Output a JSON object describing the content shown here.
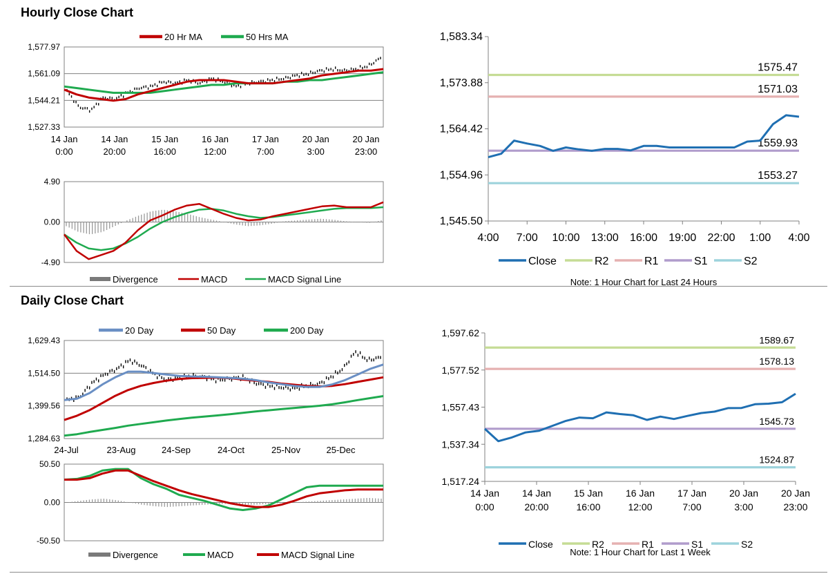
{
  "sections": {
    "hourly_title": "Hourly Close Chart",
    "daily_title": "Daily Close Chart"
  },
  "colors": {
    "ma20hr": "#c00000",
    "ma50hr": "#1faa4f",
    "close": "#1f6fb2",
    "r2": "#c5dc95",
    "r1": "#e5b1b1",
    "s1": "#b09ccc",
    "s2": "#9dd3dc",
    "divergence": "#7a7a7a",
    "day20": "#6a8fc4",
    "day50": "#c00000",
    "day200": "#1faa4f"
  },
  "chart_data": [
    {
      "id": "hourly_price",
      "type": "line",
      "legend": [
        "20 Hr MA",
        "50 Hrs MA"
      ],
      "yticks": [
        "1,577.97",
        "1,561.09",
        "1,544.21",
        "1,527.33"
      ],
      "ylim": [
        1527.33,
        1577.97
      ],
      "xticks": [
        [
          "14 Jan",
          "0:00"
        ],
        [
          "14 Jan",
          "20:00"
        ],
        [
          "15 Jan",
          "16:00"
        ],
        [
          "16 Jan",
          "12:00"
        ],
        [
          "17 Jan",
          "7:00"
        ],
        [
          "20 Jan",
          "3:00"
        ],
        [
          "20 Jan",
          "23:00"
        ]
      ],
      "series": [
        {
          "name": "Close",
          "values": [
            1550,
            1540,
            1538,
            1546,
            1545,
            1549,
            1552,
            1553,
            1556,
            1555,
            1557,
            1555,
            1558,
            1556,
            1553,
            1555,
            1556,
            1557,
            1558,
            1560,
            1561,
            1563,
            1564,
            1563,
            1564,
            1566,
            1571
          ]
        },
        {
          "name": "20 Hr MA",
          "values": [
            1551,
            1548,
            1546,
            1545,
            1544,
            1545,
            1548,
            1550,
            1552,
            1554,
            1556,
            1557,
            1557,
            1557,
            1556,
            1555,
            1555,
            1555,
            1556,
            1557,
            1558,
            1560,
            1561,
            1562,
            1563,
            1563,
            1564
          ]
        },
        {
          "name": "50 Hrs MA",
          "values": [
            1553,
            1552,
            1551,
            1550,
            1549,
            1549,
            1549,
            1549,
            1550,
            1551,
            1552,
            1553,
            1554,
            1554,
            1555,
            1555,
            1555,
            1555,
            1556,
            1556,
            1557,
            1557,
            1558,
            1559,
            1560,
            1561,
            1562
          ]
        }
      ]
    },
    {
      "id": "hourly_macd",
      "type": "line",
      "legend": [
        "Divergence",
        "MACD",
        "MACD Signal Line"
      ],
      "yticks": [
        "4.90",
        "0.00",
        "-4.90"
      ],
      "ylim": [
        -4.9,
        4.9
      ],
      "series": [
        {
          "name": "Divergence",
          "values": [
            -0.5,
            -1.2,
            -1.5,
            -1.2,
            -0.5,
            0.2,
            0.8,
            1.3,
            1.5,
            1.3,
            1.0,
            0.6,
            0.3,
            0.0,
            -0.3,
            -0.5,
            -0.4,
            -0.2,
            0.1,
            0.2,
            0.3,
            0.4,
            0.3,
            0.1,
            0.0,
            -0.1,
            0.2
          ]
        },
        {
          "name": "MACD",
          "values": [
            -1.5,
            -3.5,
            -4.5,
            -4.0,
            -3.5,
            -2.5,
            -1.0,
            0.2,
            0.8,
            1.5,
            2.0,
            2.2,
            1.6,
            1.0,
            0.5,
            0.2,
            0.3,
            0.7,
            1.0,
            1.3,
            1.6,
            1.9,
            2.0,
            1.8,
            1.8,
            1.8,
            2.4
          ]
        },
        {
          "name": "MACD Signal Line",
          "values": [
            -1.5,
            -2.5,
            -3.2,
            -3.4,
            -3.2,
            -2.6,
            -1.8,
            -0.8,
            0.0,
            0.6,
            1.1,
            1.5,
            1.6,
            1.4,
            1.0,
            0.7,
            0.5,
            0.6,
            0.8,
            1.0,
            1.2,
            1.4,
            1.6,
            1.7,
            1.7,
            1.7,
            1.8
          ]
        }
      ]
    },
    {
      "id": "hourly_pivot",
      "type": "line",
      "legend": [
        "Close",
        "R2",
        "R1",
        "S1",
        "S2"
      ],
      "note": "Note: 1 Hour Chart for Last 24 Hours",
      "yticks": [
        "1,583.34",
        "1,573.88",
        "1,564.42",
        "1,554.96",
        "1,545.50"
      ],
      "ylim": [
        1545.5,
        1583.34
      ],
      "xticks": [
        "4:00",
        "7:00",
        "10:00",
        "13:00",
        "16:00",
        "19:00",
        "22:00",
        "1:00",
        "4:00"
      ],
      "levels": [
        {
          "name": "R2",
          "value": 1575.47,
          "label": "1575.47"
        },
        {
          "name": "R1",
          "value": 1571.03,
          "label": "1571.03"
        },
        {
          "name": "S1",
          "value": 1559.93,
          "label": "1559.93"
        },
        {
          "name": "S2",
          "value": 1553.27,
          "label": "1553.27"
        }
      ],
      "close": [
        1558.6,
        1559.3,
        1562.0,
        1561.4,
        1560.9,
        1559.9,
        1560.6,
        1560.2,
        1559.9,
        1560.3,
        1560.3,
        1560.0,
        1560.9,
        1560.9,
        1560.6,
        1560.6,
        1560.6,
        1560.6,
        1560.6,
        1560.6,
        1561.8,
        1562.0,
        1565.4,
        1567.2,
        1566.9
      ]
    },
    {
      "id": "daily_price",
      "type": "line",
      "legend": [
        "20 Day",
        "50 Day",
        "200 Day"
      ],
      "yticks": [
        "1,629.43",
        "1,514.50",
        "1,399.56",
        "1,284.63"
      ],
      "ylim": [
        1284.63,
        1629.43
      ],
      "xticks": [
        "24-Jul",
        "23-Aug",
        "24-Sep",
        "24-Oct",
        "25-Nov",
        "25-Dec"
      ],
      "series": [
        {
          "name": "Close",
          "values": [
            1420,
            1430,
            1480,
            1510,
            1530,
            1560,
            1540,
            1510,
            1490,
            1500,
            1505,
            1500,
            1490,
            1495,
            1500,
            1480,
            1470,
            1465,
            1460,
            1470,
            1475,
            1500,
            1530,
            1590,
            1560,
            1570
          ]
        },
        {
          "name": "20 Day",
          "values": [
            1420,
            1425,
            1445,
            1475,
            1500,
            1520,
            1520,
            1515,
            1510,
            1505,
            1503,
            1502,
            1500,
            1498,
            1495,
            1490,
            1482,
            1476,
            1470,
            1466,
            1466,
            1475,
            1490,
            1510,
            1530,
            1545
          ]
        },
        {
          "name": "50 Day",
          "values": [
            1350,
            1365,
            1385,
            1410,
            1435,
            1455,
            1470,
            1480,
            1488,
            1494,
            1497,
            1498,
            1499,
            1497,
            1492,
            1488,
            1484,
            1478,
            1474,
            1470,
            1468,
            1470,
            1476,
            1484,
            1492,
            1500
          ]
        },
        {
          "name": "200 Day",
          "values": [
            1295,
            1300,
            1308,
            1315,
            1322,
            1330,
            1336,
            1342,
            1348,
            1353,
            1358,
            1362,
            1366,
            1370,
            1375,
            1380,
            1384,
            1388,
            1392,
            1396,
            1400,
            1405,
            1412,
            1420,
            1427,
            1434
          ]
        }
      ]
    },
    {
      "id": "daily_macd",
      "type": "line",
      "legend": [
        "Divergence",
        "MACD",
        "MACD Signal Line"
      ],
      "yticks": [
        "50.50",
        "0.00",
        "-50.50"
      ],
      "ylim": [
        -50.5,
        50.5
      ],
      "series": [
        {
          "name": "Divergence",
          "values": [
            0,
            2,
            4,
            5,
            3,
            0,
            -3,
            -5,
            -6,
            -5,
            -4,
            -3,
            -2,
            -2,
            -3,
            -3,
            -2,
            -1,
            0,
            1,
            2,
            3,
            4,
            5,
            6,
            5
          ]
        },
        {
          "name": "MACD",
          "values": [
            30,
            31,
            35,
            42,
            44,
            44,
            32,
            24,
            18,
            10,
            6,
            2,
            -3,
            -8,
            -10,
            -8,
            -4,
            4,
            12,
            20,
            22,
            22,
            22,
            22,
            22,
            22
          ]
        },
        {
          "name": "MACD Signal Line",
          "values": [
            30,
            30,
            32,
            38,
            42,
            42,
            35,
            28,
            22,
            16,
            11,
            7,
            3,
            -1,
            -4,
            -6,
            -6,
            -3,
            2,
            8,
            12,
            14,
            16,
            17,
            17,
            17
          ]
        }
      ]
    },
    {
      "id": "daily_pivot",
      "type": "line",
      "legend": [
        "Close",
        "R2",
        "R1",
        "S1",
        "S2"
      ],
      "note": "Note: 1 Hour Chart for Last 1 Week",
      "yticks": [
        "1,597.62",
        "1,577.52",
        "1,557.43",
        "1,537.34",
        "1,517.24"
      ],
      "ylim": [
        1517.24,
        1597.62
      ],
      "xticks": [
        [
          "14 Jan",
          "0:00"
        ],
        [
          "14 Jan",
          "20:00"
        ],
        [
          "15 Jan",
          "16:00"
        ],
        [
          "16 Jan",
          "12:00"
        ],
        [
          "17 Jan",
          "7:00"
        ],
        [
          "20 Jan",
          "3:00"
        ],
        [
          "20 Jan",
          "23:00"
        ]
      ],
      "levels": [
        {
          "name": "R2",
          "value": 1589.67,
          "label": "1589.67"
        },
        {
          "name": "R1",
          "value": 1578.13,
          "label": "1578.13"
        },
        {
          "name": "S1",
          "value": 1545.73,
          "label": "1545.73"
        },
        {
          "name": "S2",
          "value": 1524.87,
          "label": "1524.87"
        }
      ],
      "close": [
        1545.7,
        1539.0,
        1541.0,
        1543.7,
        1544.6,
        1547.3,
        1550.0,
        1551.8,
        1551.4,
        1554.6,
        1553.7,
        1553.0,
        1550.5,
        1552.3,
        1551.0,
        1552.7,
        1554.2,
        1555.0,
        1556.9,
        1557.0,
        1559.0,
        1559.3,
        1560.1,
        1564.7
      ]
    }
  ]
}
